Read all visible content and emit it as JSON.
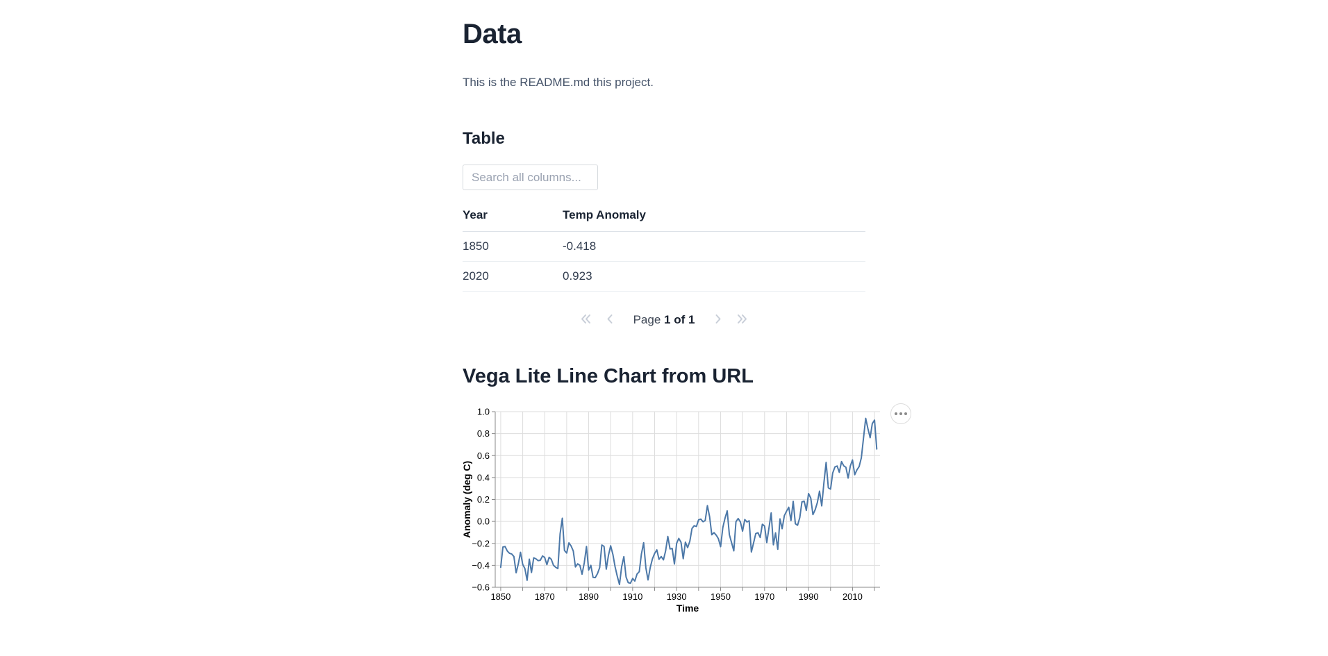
{
  "page": {
    "title": "Data",
    "intro": "This is the README.md this project."
  },
  "table_section": {
    "heading": "Table",
    "search_placeholder": "Search all columns...",
    "columns": [
      "Year",
      "Temp Anomaly"
    ],
    "rows": [
      [
        "1850",
        "-0.418"
      ],
      [
        "2020",
        "0.923"
      ]
    ],
    "pagination": {
      "prefix": "Page",
      "current": "1 of 1"
    }
  },
  "chart_section": {
    "heading": "Vega Lite Line Chart from URL"
  },
  "chart_data": {
    "type": "line",
    "title": "",
    "xlabel": "Time",
    "ylabel": "Anomaly (deg C)",
    "x_start_year": 1850,
    "xlim": [
      1847.5,
      2022.5
    ],
    "ylim": [
      -0.6,
      1.0
    ],
    "x_tick_step_grid": 10,
    "x_tick_labels": [
      1850,
      1870,
      1890,
      1910,
      1930,
      1950,
      1970,
      1990,
      2010
    ],
    "y_tick_step": 0.2,
    "grid": true,
    "legend": "none",
    "line_color": "#4c78a8",
    "grid_color": "#dddddd",
    "axis_color": "#888888",
    "label_color": "#000000",
    "values": [
      -0.418,
      -0.233,
      -0.229,
      -0.27,
      -0.291,
      -0.297,
      -0.32,
      -0.468,
      -0.388,
      -0.281,
      -0.392,
      -0.429,
      -0.536,
      -0.344,
      -0.465,
      -0.332,
      -0.341,
      -0.357,
      -0.354,
      -0.315,
      -0.328,
      -0.394,
      -0.327,
      -0.345,
      -0.4,
      -0.418,
      -0.43,
      -0.113,
      0.029,
      -0.265,
      -0.288,
      -0.195,
      -0.223,
      -0.27,
      -0.415,
      -0.386,
      -0.4,
      -0.481,
      -0.378,
      -0.228,
      -0.443,
      -0.4,
      -0.51,
      -0.512,
      -0.476,
      -0.421,
      -0.215,
      -0.228,
      -0.435,
      -0.31,
      -0.222,
      -0.3,
      -0.411,
      -0.499,
      -0.575,
      -0.414,
      -0.321,
      -0.507,
      -0.558,
      -0.563,
      -0.52,
      -0.543,
      -0.479,
      -0.458,
      -0.296,
      -0.194,
      -0.423,
      -0.533,
      -0.42,
      -0.342,
      -0.292,
      -0.259,
      -0.345,
      -0.32,
      -0.35,
      -0.269,
      -0.137,
      -0.251,
      -0.246,
      -0.388,
      -0.199,
      -0.155,
      -0.191,
      -0.34,
      -0.189,
      -0.239,
      -0.181,
      -0.065,
      -0.039,
      -0.046,
      0.015,
      0.021,
      -0.003,
      0.008,
      0.144,
      0.041,
      -0.122,
      -0.102,
      -0.125,
      -0.157,
      -0.23,
      -0.056,
      0.028,
      0.096,
      -0.12,
      -0.194,
      -0.268,
      -0.003,
      0.027,
      -0.005,
      -0.089,
      0.017,
      -0.005,
      0.006,
      -0.279,
      -0.195,
      -0.111,
      -0.103,
      -0.146,
      -0.026,
      -0.042,
      -0.193,
      -0.061,
      0.077,
      -0.213,
      -0.104,
      -0.254,
      0.023,
      -0.066,
      0.053,
      0.094,
      0.129,
      0.008,
      0.183,
      -0.021,
      -0.035,
      0.035,
      0.178,
      0.184,
      0.1,
      0.254,
      0.213,
      0.062,
      0.106,
      0.172,
      0.276,
      0.142,
      0.356,
      0.538,
      0.306,
      0.294,
      0.441,
      0.496,
      0.505,
      0.447,
      0.545,
      0.506,
      0.493,
      0.395,
      0.506,
      0.56,
      0.425,
      0.47,
      0.499,
      0.579,
      0.763,
      0.939,
      0.845,
      0.763,
      0.891,
      0.923,
      0.66
    ]
  }
}
